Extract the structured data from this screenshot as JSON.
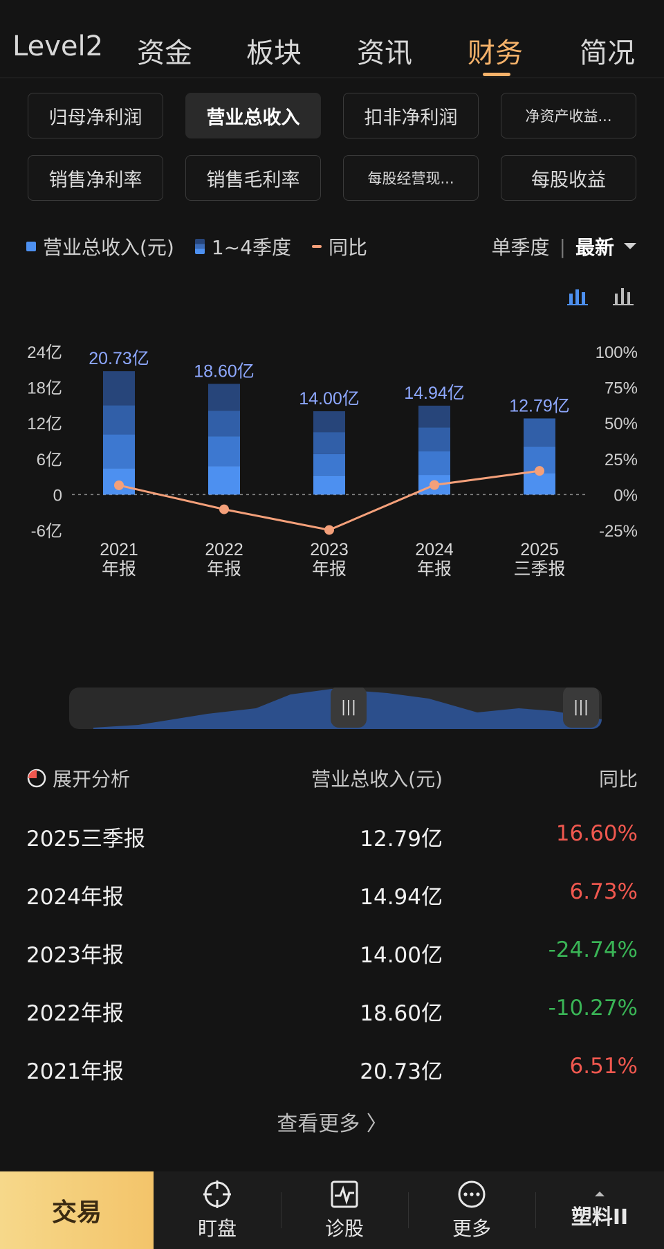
{
  "top_tabs": [
    {
      "label": "Level2",
      "active": false
    },
    {
      "label": "资金",
      "active": false
    },
    {
      "label": "板块",
      "active": false
    },
    {
      "label": "资讯",
      "active": false
    },
    {
      "label": "财务",
      "active": true
    },
    {
      "label": "简况",
      "active": false
    }
  ],
  "metrics": [
    {
      "label": "归母净利润",
      "active": false
    },
    {
      "label": "营业总收入",
      "active": true
    },
    {
      "label": "扣非净利润",
      "active": false
    },
    {
      "label": "净资产收益...",
      "active": false
    },
    {
      "label": "销售净利率",
      "active": false
    },
    {
      "label": "销售毛利率",
      "active": false
    },
    {
      "label": "每股经营现...",
      "active": false
    },
    {
      "label": "每股收益",
      "active": false
    }
  ],
  "legend": {
    "revenue": "营业总收入(元)",
    "quarters": "1~4季度",
    "yoy": "同比"
  },
  "controls": {
    "period": "单季度",
    "latest": "最新"
  },
  "chart_data": {
    "type": "bar",
    "categories": [
      "2021\n年报",
      "2022\n年报",
      "2023\n年报",
      "2024\n年报",
      "2025\n三季报"
    ],
    "category_lines": [
      [
        "2021",
        "年报"
      ],
      [
        "2022",
        "年报"
      ],
      [
        "2023",
        "年报"
      ],
      [
        "2024",
        "年报"
      ],
      [
        "2025",
        "三季报"
      ]
    ],
    "series": [
      {
        "name": "营业总收入(元)",
        "values": [
          20.73,
          18.6,
          14.0,
          14.94,
          12.79
        ],
        "labels": [
          "20.73亿",
          "18.60亿",
          "14.00亿",
          "14.94亿",
          "12.79亿"
        ],
        "unit": "亿"
      },
      {
        "name": "同比",
        "values": [
          6.51,
          -10.27,
          -24.74,
          6.73,
          16.6
        ],
        "unit": "%",
        "axis": "right"
      }
    ],
    "quarter_stacks": [
      [
        4.4,
        5.7,
        4.9,
        5.73
      ],
      [
        4.8,
        5.0,
        4.3,
        4.5
      ],
      [
        3.2,
        3.6,
        3.7,
        3.5
      ],
      [
        3.3,
        4.0,
        4.0,
        3.64
      ],
      [
        3.6,
        4.5,
        4.69
      ]
    ],
    "left_axis": {
      "ticks": [
        "24亿",
        "18亿",
        "12亿",
        "6亿",
        "0",
        "-6亿"
      ],
      "values": [
        24,
        18,
        12,
        6,
        0,
        -6
      ],
      "ylim": [
        -6,
        24
      ]
    },
    "right_axis": {
      "ticks": [
        "100%",
        "75%",
        "50%",
        "25%",
        "0%",
        "-25%"
      ],
      "values": [
        100,
        75,
        50,
        25,
        0,
        -25
      ],
      "ylim": [
        -25,
        100
      ]
    },
    "colors": {
      "bar_bottom": "#4d90f0",
      "bar_top": "#27457a",
      "yoy": "#f4a07a",
      "label": "#8ea8ff"
    }
  },
  "table": {
    "header": {
      "analysis": "展开分析",
      "value": "营业总收入(元)",
      "yoy": "同比"
    },
    "rows": [
      {
        "period": "2025三季报",
        "value": "12.79亿",
        "yoy": "16.60%",
        "trend": "up"
      },
      {
        "period": "2024年报",
        "value": "14.94亿",
        "yoy": "6.73%",
        "trend": "up"
      },
      {
        "period": "2023年报",
        "value": "14.00亿",
        "yoy": "-24.74%",
        "trend": "down"
      },
      {
        "period": "2022年报",
        "value": "18.60亿",
        "yoy": "-10.27%",
        "trend": "down"
      },
      {
        "period": "2021年报",
        "value": "20.73亿",
        "yoy": "6.51%",
        "trend": "up"
      }
    ],
    "more": "查看更多 〉"
  },
  "bottom_nav": {
    "trade": "交易",
    "items": [
      {
        "label": "盯盘",
        "icon": "crosshair-icon"
      },
      {
        "label": "诊股",
        "icon": "pulse-icon"
      },
      {
        "label": "更多",
        "icon": "more-icon"
      }
    ],
    "stock": "塑料II"
  }
}
